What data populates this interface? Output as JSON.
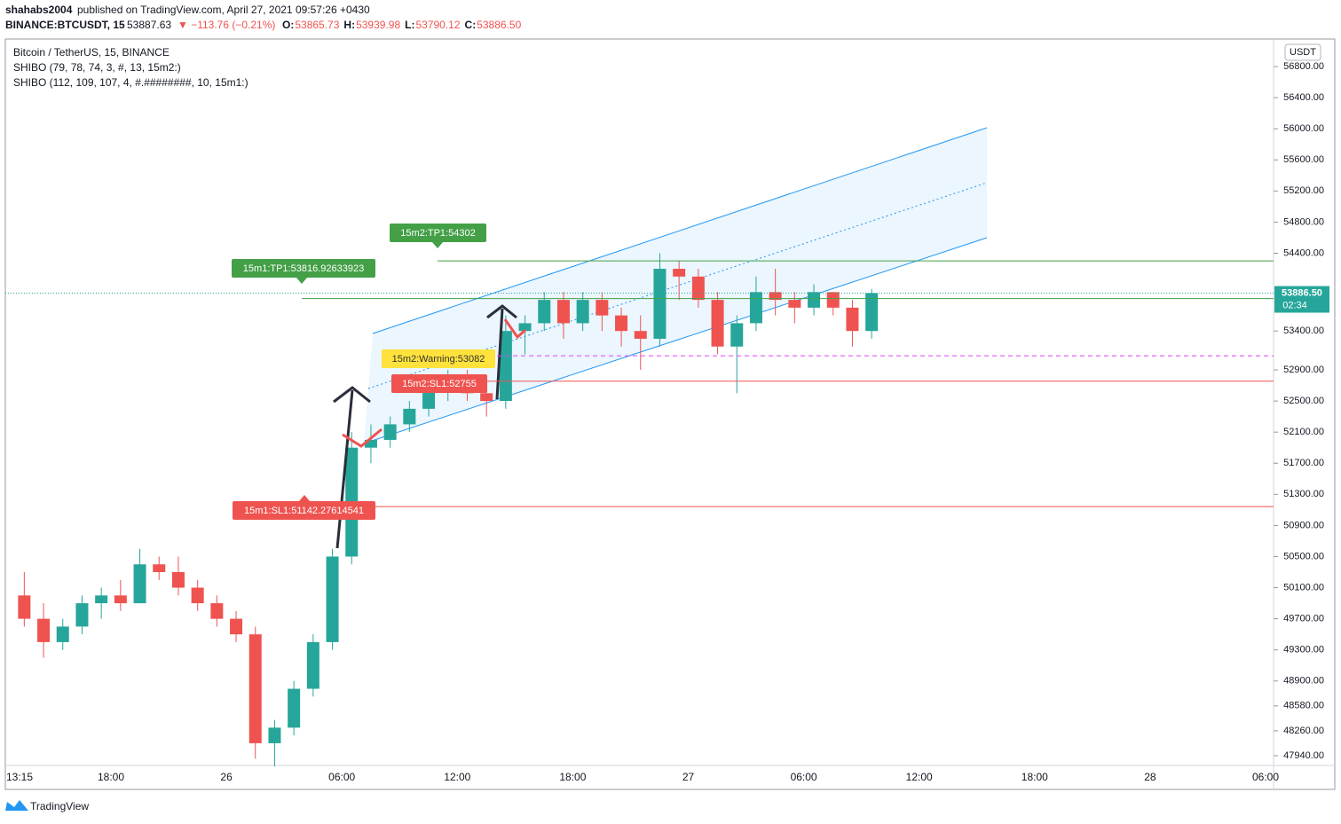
{
  "header": {
    "author": "shahabs2004",
    "published": "published on TradingView.com, April 27, 2021 09:57:26 +0430",
    "symbol": "BINANCE:BTCUSDT, 15",
    "last": "53887.63",
    "change": "▼ −113.76 (−0.21%)",
    "ohlc": [
      {
        "label": "O:",
        "value": "53865.73"
      },
      {
        "label": "H:",
        "value": "53939.98"
      },
      {
        "label": "L:",
        "value": "53790.12"
      },
      {
        "label": "C:",
        "value": "53886.50"
      }
    ]
  },
  "legend": [
    "Bitcoin / TetherUS, 15, BINANCE",
    "SHIBO (79, 78, 74, 3, #, 13, 15m2:)",
    "SHIBO (112, 109, 107, 4, #.########, 10, 15m1:)"
  ],
  "footer": "TradingView",
  "chart_data": {
    "type": "candlestick",
    "currency": "USDT",
    "up_color": "#26a69a",
    "down_color": "#ef5350",
    "grid": false,
    "ylim": [
      47814,
      57154
    ],
    "yticks": [
      {
        "value": 56800,
        "label": "56800.00"
      },
      {
        "value": 56400,
        "label": "56400.00"
      },
      {
        "value": 56000,
        "label": "56000.00"
      },
      {
        "value": 55600,
        "label": "55600.00"
      },
      {
        "value": 55200,
        "label": "55200.00"
      },
      {
        "value": 54800,
        "label": "54800.00"
      },
      {
        "value": 54400,
        "label": "54400.00"
      },
      {
        "value": 53400,
        "label": "53400.00"
      },
      {
        "value": 52900,
        "label": "52900.00"
      },
      {
        "value": 52500,
        "label": "52500.00"
      },
      {
        "value": 52100,
        "label": "52100.00"
      },
      {
        "value": 51700,
        "label": "51700.00"
      },
      {
        "value": 51300,
        "label": "51300.00"
      },
      {
        "value": 50900,
        "label": "50900.00"
      },
      {
        "value": 50500,
        "label": "50500.00"
      },
      {
        "value": 50100,
        "label": "50100.00"
      },
      {
        "value": 49700,
        "label": "49700.00"
      },
      {
        "value": 49300,
        "label": "49300.00"
      },
      {
        "value": 48900,
        "label": "48900.00"
      },
      {
        "value": 48580,
        "label": "48580.00"
      },
      {
        "value": 48260,
        "label": "48260.00"
      },
      {
        "value": 47940,
        "label": "47940.00"
      }
    ],
    "xticks": [
      "13:15",
      "18:00",
      "26",
      "06:00",
      "12:00",
      "18:00",
      "27",
      "06:00",
      "12:00",
      "18:00",
      "28",
      "06:00"
    ],
    "candles": [
      {
        "open": 50000,
        "high": 50300,
        "low": 49600,
        "close": 49700
      },
      {
        "open": 49700,
        "high": 49900,
        "low": 49200,
        "close": 49400
      },
      {
        "open": 49400,
        "high": 49700,
        "low": 49300,
        "close": 49600
      },
      {
        "open": 49600,
        "high": 50000,
        "low": 49500,
        "close": 49900
      },
      {
        "open": 49900,
        "high": 50100,
        "low": 49700,
        "close": 50000
      },
      {
        "open": 50000,
        "high": 50200,
        "low": 49800,
        "close": 49900
      },
      {
        "open": 49900,
        "high": 50600,
        "low": 49900,
        "close": 50400
      },
      {
        "open": 50400,
        "high": 50500,
        "low": 50200,
        "close": 50300
      },
      {
        "open": 50300,
        "high": 50500,
        "low": 50000,
        "close": 50100
      },
      {
        "open": 50100,
        "high": 50200,
        "low": 49800,
        "close": 49900
      },
      {
        "open": 49900,
        "high": 50000,
        "low": 49600,
        "close": 49700
      },
      {
        "open": 49700,
        "high": 49800,
        "low": 49400,
        "close": 49500
      },
      {
        "open": 49500,
        "high": 49600,
        "low": 47900,
        "close": 48100
      },
      {
        "open": 48100,
        "high": 48400,
        "low": 47800,
        "close": 48300
      },
      {
        "open": 48300,
        "high": 48900,
        "low": 48200,
        "close": 48800
      },
      {
        "open": 48800,
        "high": 49500,
        "low": 48700,
        "close": 49400
      },
      {
        "open": 49400,
        "high": 50600,
        "low": 49300,
        "close": 50500
      },
      {
        "open": 50500,
        "high": 52100,
        "low": 50400,
        "close": 51900
      },
      {
        "open": 51900,
        "high": 52200,
        "low": 51700,
        "close": 52000
      },
      {
        "open": 52000,
        "high": 52300,
        "low": 51900,
        "close": 52200
      },
      {
        "open": 52200,
        "high": 52500,
        "low": 52100,
        "close": 52400
      },
      {
        "open": 52400,
        "high": 52800,
        "low": 52300,
        "close": 52700
      },
      {
        "open": 52700,
        "high": 52900,
        "low": 52500,
        "close": 52800
      },
      {
        "open": 52800,
        "high": 52900,
        "low": 52500,
        "close": 52600
      },
      {
        "open": 52600,
        "high": 52700,
        "low": 52300,
        "close": 52500
      },
      {
        "open": 52500,
        "high": 53600,
        "low": 52400,
        "close": 53400
      },
      {
        "open": 53400,
        "high": 53600,
        "low": 53100,
        "close": 53500
      },
      {
        "open": 53500,
        "high": 53900,
        "low": 53400,
        "close": 53800
      },
      {
        "open": 53800,
        "high": 53900,
        "low": 53300,
        "close": 53500
      },
      {
        "open": 53500,
        "high": 53900,
        "low": 53400,
        "close": 53800
      },
      {
        "open": 53800,
        "high": 53900,
        "low": 53400,
        "close": 53600
      },
      {
        "open": 53600,
        "high": 53700,
        "low": 53200,
        "close": 53400
      },
      {
        "open": 53400,
        "high": 53600,
        "low": 52900,
        "close": 53300
      },
      {
        "open": 53300,
        "high": 54400,
        "low": 53200,
        "close": 54200
      },
      {
        "open": 54200,
        "high": 54300,
        "low": 53800,
        "close": 54100
      },
      {
        "open": 54100,
        "high": 54200,
        "low": 53700,
        "close": 53800
      },
      {
        "open": 53800,
        "high": 53900,
        "low": 53100,
        "close": 53200
      },
      {
        "open": 53200,
        "high": 53600,
        "low": 52600,
        "close": 53500
      },
      {
        "open": 53500,
        "high": 54100,
        "low": 53400,
        "close": 53900
      },
      {
        "open": 53900,
        "high": 54200,
        "low": 53600,
        "close": 53800
      },
      {
        "open": 53800,
        "high": 53900,
        "low": 53500,
        "close": 53700
      },
      {
        "open": 53700,
        "high": 54000,
        "low": 53600,
        "close": 53900
      },
      {
        "open": 53900,
        "high": 53900,
        "low": 53600,
        "close": 53700
      },
      {
        "open": 53700,
        "high": 53800,
        "low": 53200,
        "close": 53400
      },
      {
        "open": 53400,
        "high": 53939.98,
        "low": 53300,
        "close": 53886.5
      }
    ],
    "levels": [
      {
        "label": "15m2:TP1:54302",
        "value": 54302,
        "color": "#43a047",
        "text_color": "#ffffff",
        "dash": false
      },
      {
        "label": "15m1:TP1:53816.92633923",
        "value": 53816.92633923,
        "color": "#43a047",
        "text_color": "#ffffff",
        "dash": false
      },
      {
        "label": "15m2:Warning:53082",
        "value": 53082,
        "color": "#ffe23b",
        "line_color": "#e040fb",
        "text_color": "#333333",
        "dash": true
      },
      {
        "label": "15m2:SL1:52755",
        "value": 52755,
        "color": "#ef5350",
        "text_color": "#ffffff",
        "dash": false
      },
      {
        "label": "15m1:SL1:51142.27614541",
        "value": 51142.27614541,
        "color": "#ef5350",
        "text_color": "#ffffff",
        "dash": false
      }
    ],
    "price_line": {
      "value": 53886.5,
      "label": "53886.50",
      "countdown": "02:34",
      "color": "#26a69a"
    }
  }
}
